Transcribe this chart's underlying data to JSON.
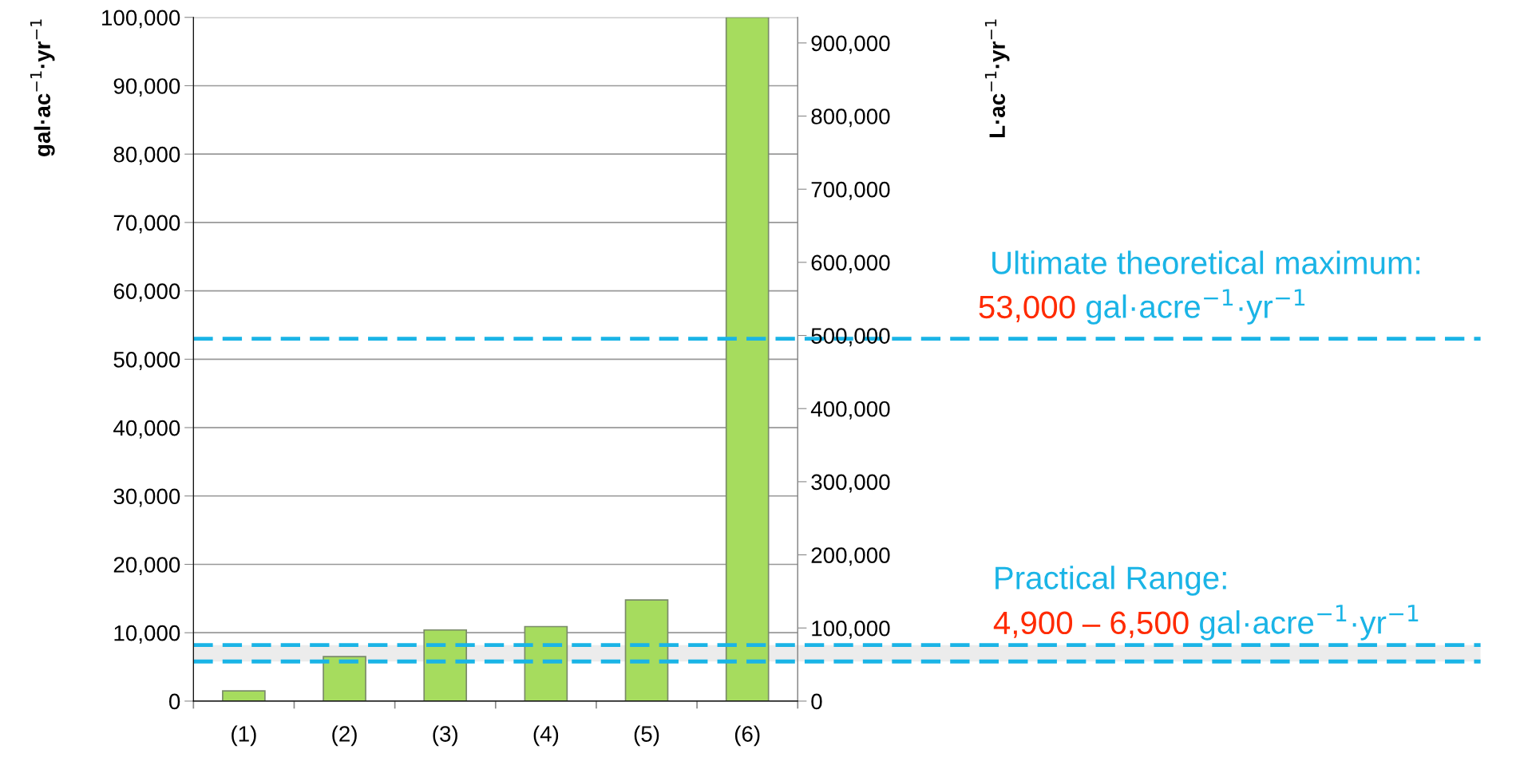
{
  "chart_data": {
    "type": "bar",
    "categories": [
      "(1)",
      "(2)",
      "(3)",
      "(4)",
      "(5)",
      "(6)"
    ],
    "series": [
      {
        "color": "#a6dc5e",
        "values": [
          1500,
          6500,
          10400,
          10900,
          14800,
          100000
        ]
      }
    ],
    "ylabel": "gal·ac$^{−1}$·yr$^{−1}$",
    "y2label": "L·ac$^{−1}$·yr$^{−1}$",
    "ylim": [
      0,
      100000
    ],
    "yticks": [
      {
        "value": 0,
        "label": "0"
      },
      {
        "value": 10000,
        "label": "10,000"
      },
      {
        "value": 20000,
        "label": "20,000"
      },
      {
        "value": 30000,
        "label": "30,000"
      },
      {
        "value": 40000,
        "label": "40,000"
      },
      {
        "value": 50000,
        "label": "50,000"
      },
      {
        "value": 60000,
        "label": "60,000"
      },
      {
        "value": 70000,
        "label": "70,000"
      },
      {
        "value": 80000,
        "label": "80,000"
      },
      {
        "value": 90000,
        "label": "90,000"
      },
      {
        "value": 100000,
        "label": "100,000"
      }
    ],
    "y2lim": [
      0,
      935000
    ],
    "y2ticks": [
      {
        "value": 0,
        "label": "0"
      },
      {
        "value": 100000,
        "label": "100,000"
      },
      {
        "value": 200000,
        "label": "200,000"
      },
      {
        "value": 300000,
        "label": "300,000"
      },
      {
        "value": 400000,
        "label": "400,000"
      },
      {
        "value": 500000,
        "label": "500,000"
      },
      {
        "value": 600000,
        "label": "600,000"
      },
      {
        "value": 700000,
        "label": "700,000"
      },
      {
        "value": 800000,
        "label": "800,000"
      },
      {
        "value": 900000,
        "label": "900,000"
      }
    ],
    "grid": "y",
    "ref_lines": [
      {
        "axis": "y",
        "value": 53000,
        "color": "#1ab4e6",
        "line_style": "dashed"
      },
      {
        "axis": "y",
        "value": 8200,
        "color": "#1ab4e6",
        "line_style": "dashed"
      },
      {
        "axis": "y",
        "value": 5800,
        "color": "#1ab4e6",
        "line_style": "dashed"
      }
    ],
    "bands": [
      {
        "axis": "y",
        "from": 5800,
        "to": 8200,
        "color": "#ececec"
      }
    ],
    "annotations": [
      "Ultimate theoretical maximum:",
      "53,000",
      "gal·acre$^{−1}$·yr$^{−1}$",
      "Practical Range:",
      "4,900 – 6,500",
      "gal·acre$^{−1}$·yr$^{−1}$"
    ]
  }
}
